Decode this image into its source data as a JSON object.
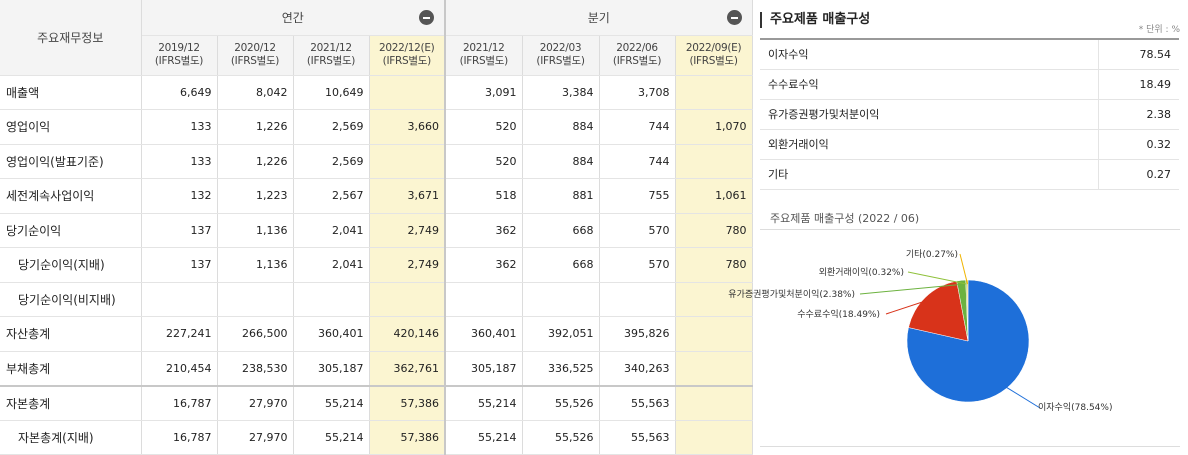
{
  "table": {
    "corner_label": "주요재무정보",
    "group_annual": "연간",
    "group_quarterly": "분기",
    "periods": [
      {
        "date": "2019/12",
        "basis": "(IFRS별도)"
      },
      {
        "date": "2020/12",
        "basis": "(IFRS별도)"
      },
      {
        "date": "2021/12",
        "basis": "(IFRS별도)"
      },
      {
        "date": "2022/12(E)",
        "basis": "(IFRS별도)"
      },
      {
        "date": "2021/12",
        "basis": "(IFRS별도)"
      },
      {
        "date": "2022/03",
        "basis": "(IFRS별도)"
      },
      {
        "date": "2022/06",
        "basis": "(IFRS별도)"
      },
      {
        "date": "2022/09(E)",
        "basis": "(IFRS별도)"
      }
    ],
    "rows": [
      {
        "label": "매출액",
        "values": [
          "6,649",
          "8,042",
          "10,649",
          "",
          "3,091",
          "3,384",
          "3,708",
          ""
        ]
      },
      {
        "label": "영업이익",
        "values": [
          "133",
          "1,226",
          "2,569",
          "3,660",
          "520",
          "884",
          "744",
          "1,070"
        ]
      },
      {
        "label": "영업이익(발표기준)",
        "values": [
          "133",
          "1,226",
          "2,569",
          "",
          "520",
          "884",
          "744",
          ""
        ]
      },
      {
        "label": "세전계속사업이익",
        "values": [
          "132",
          "1,223",
          "2,567",
          "3,671",
          "518",
          "881",
          "755",
          "1,061"
        ]
      },
      {
        "label": "당기순이익",
        "values": [
          "137",
          "1,136",
          "2,041",
          "2,749",
          "362",
          "668",
          "570",
          "780"
        ]
      },
      {
        "label": "당기순이익(지배)",
        "values": [
          "137",
          "1,136",
          "2,041",
          "2,749",
          "362",
          "668",
          "570",
          "780"
        ]
      },
      {
        "label": "당기순이익(비지배)",
        "values": [
          "",
          "",
          "",
          "",
          "",
          "",
          "",
          ""
        ]
      },
      {
        "label": "자산총계",
        "values": [
          "227,241",
          "266,500",
          "360,401",
          "420,146",
          "360,401",
          "392,051",
          "395,826",
          ""
        ]
      },
      {
        "label": "부채총계",
        "values": [
          "210,454",
          "238,530",
          "305,187",
          "362,761",
          "305,187",
          "336,525",
          "340,263",
          ""
        ]
      },
      {
        "label": "자본총계",
        "values": [
          "16,787",
          "27,970",
          "55,214",
          "57,386",
          "55,214",
          "55,526",
          "55,563",
          ""
        ]
      },
      {
        "label": "자본총계(지배)",
        "values": [
          "16,787",
          "27,970",
          "55,214",
          "57,386",
          "55,214",
          "55,526",
          "55,563",
          ""
        ]
      }
    ]
  },
  "revenue": {
    "title": "주요제품 매출구성",
    "unit": "* 단위 : %",
    "items": [
      {
        "name": "이자수익",
        "value": "78.54"
      },
      {
        "name": "수수료수익",
        "value": "18.49"
      },
      {
        "name": "유가증권평가및처분이익",
        "value": "2.38"
      },
      {
        "name": "외환거래이익",
        "value": "0.32"
      },
      {
        "name": "기타",
        "value": "0.27"
      }
    ]
  },
  "chart_data": {
    "type": "pie",
    "title": "주요제품 매출구성 (2022 / 06)",
    "slices": [
      {
        "name": "이자수익",
        "value": 78.54,
        "label": "이자수익(78.54%)",
        "color": "#1e6fd9"
      },
      {
        "name": "수수료수익",
        "value": 18.49,
        "label": "수수료수익(18.49%)",
        "color": "#d8331a"
      },
      {
        "name": "유가증권평가및처분이익",
        "value": 2.38,
        "label": "유가증권평가및처분이익(2.38%)",
        "color": "#6cb23f"
      },
      {
        "name": "외환거래이익",
        "value": 0.32,
        "label": "외환거래이익(0.32%)",
        "color": "#8fc13a"
      },
      {
        "name": "기타",
        "value": 0.27,
        "label": "기타(0.27%)",
        "color": "#f0b400"
      }
    ]
  }
}
